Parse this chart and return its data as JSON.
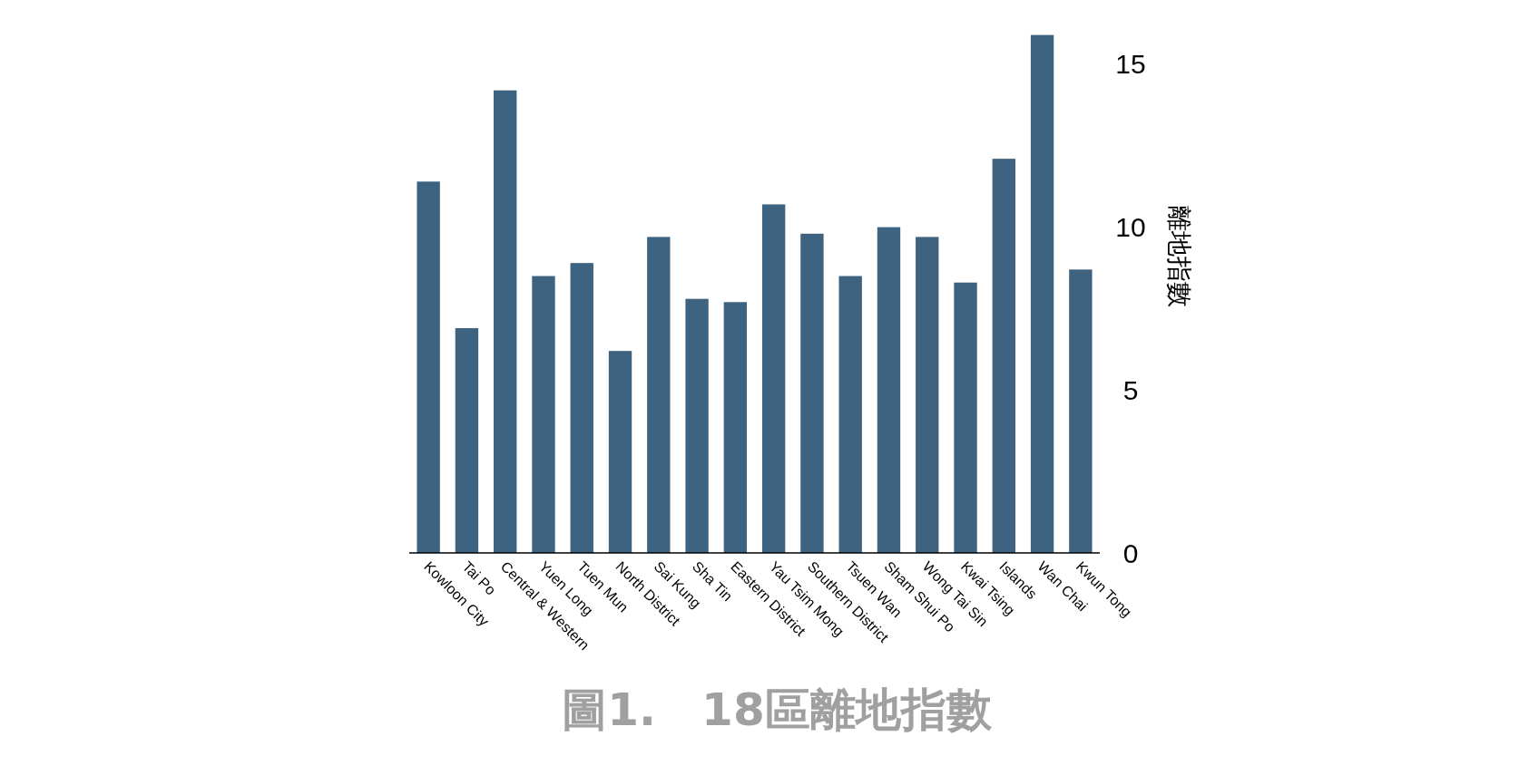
{
  "chart_data": {
    "type": "bar",
    "title": "圖1.　18區離地指數",
    "ylabel": "離地指數",
    "categories": [
      "Kowloon City",
      "Tai Po",
      "Central & Western",
      "Yuen Long",
      "Tuen Mun",
      "North District",
      "Sai Kung",
      "Sha Tin",
      "Eastern District",
      "Yau Tsim Mong",
      "Southern District",
      "Tsuen Wan",
      "Sham Shui Po",
      "Wong Tai Sin",
      "Kwai Tsing",
      "Islands",
      "Wan Chai",
      "Kwun Tong"
    ],
    "values": [
      11.4,
      6.9,
      14.2,
      8.5,
      8.9,
      6.2,
      9.7,
      7.8,
      7.7,
      10.7,
      9.8,
      8.5,
      10.0,
      9.7,
      8.3,
      12.1,
      15.9,
      8.7
    ],
    "color": "#3e6380",
    "ylim": [
      0,
      16
    ],
    "yticks": [
      0,
      5,
      10,
      15
    ],
    "grid": false
  }
}
